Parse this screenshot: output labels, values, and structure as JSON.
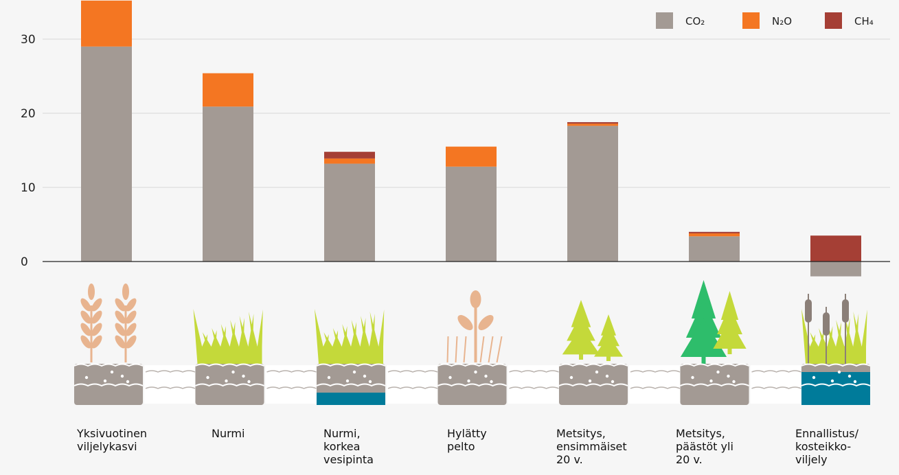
{
  "chart_data": {
    "type": "bar",
    "stacked": true,
    "title": "",
    "xlabel": "",
    "ylabel": "",
    "ylim": [
      -2,
      35
    ],
    "yticks": [
      0,
      10,
      20,
      30
    ],
    "grid": true,
    "legend_position": "top-right",
    "categories": [
      "Yksivuotinen\nviljelykasvi",
      "Nurmi",
      "Nurmi,\nkorkea\nvesipinta",
      "Hylätty\npelto",
      "Metsitys,\nensimmäiset\n20 v.",
      "Metsitys,\npäästöt yli\n20 v.",
      "Ennallistus/\nkosteikko-\nviljely"
    ],
    "series": [
      {
        "name": "CO₂",
        "color": "#a39a94",
        "values": [
          29,
          20.9,
          13.2,
          12.8,
          18.3,
          3.4,
          -2.0
        ]
      },
      {
        "name": "N₂O",
        "color": "#f47622",
        "values": [
          6.2,
          4.5,
          0.7,
          2.7,
          0.3,
          0.4,
          0
        ]
      },
      {
        "name": "CH₄",
        "color": "#a53f35",
        "values": [
          0,
          0,
          0.9,
          0,
          0.2,
          0.2,
          3.5
        ]
      }
    ]
  },
  "illustrations": [
    {
      "plant": "wheat-icon",
      "soil": "soil-dry-icon"
    },
    {
      "plant": "grass-icon",
      "soil": "soil-dry-icon"
    },
    {
      "plant": "grass-icon",
      "soil": "soil-wet-icon"
    },
    {
      "plant": "weed-icon",
      "soil": "soil-dry-icon"
    },
    {
      "plant": "young-trees-icon",
      "soil": "soil-dry-icon"
    },
    {
      "plant": "grown-trees-icon",
      "soil": "soil-dry-icon"
    },
    {
      "plant": "cattail-icon",
      "soil": "soil-water-icon"
    }
  ]
}
